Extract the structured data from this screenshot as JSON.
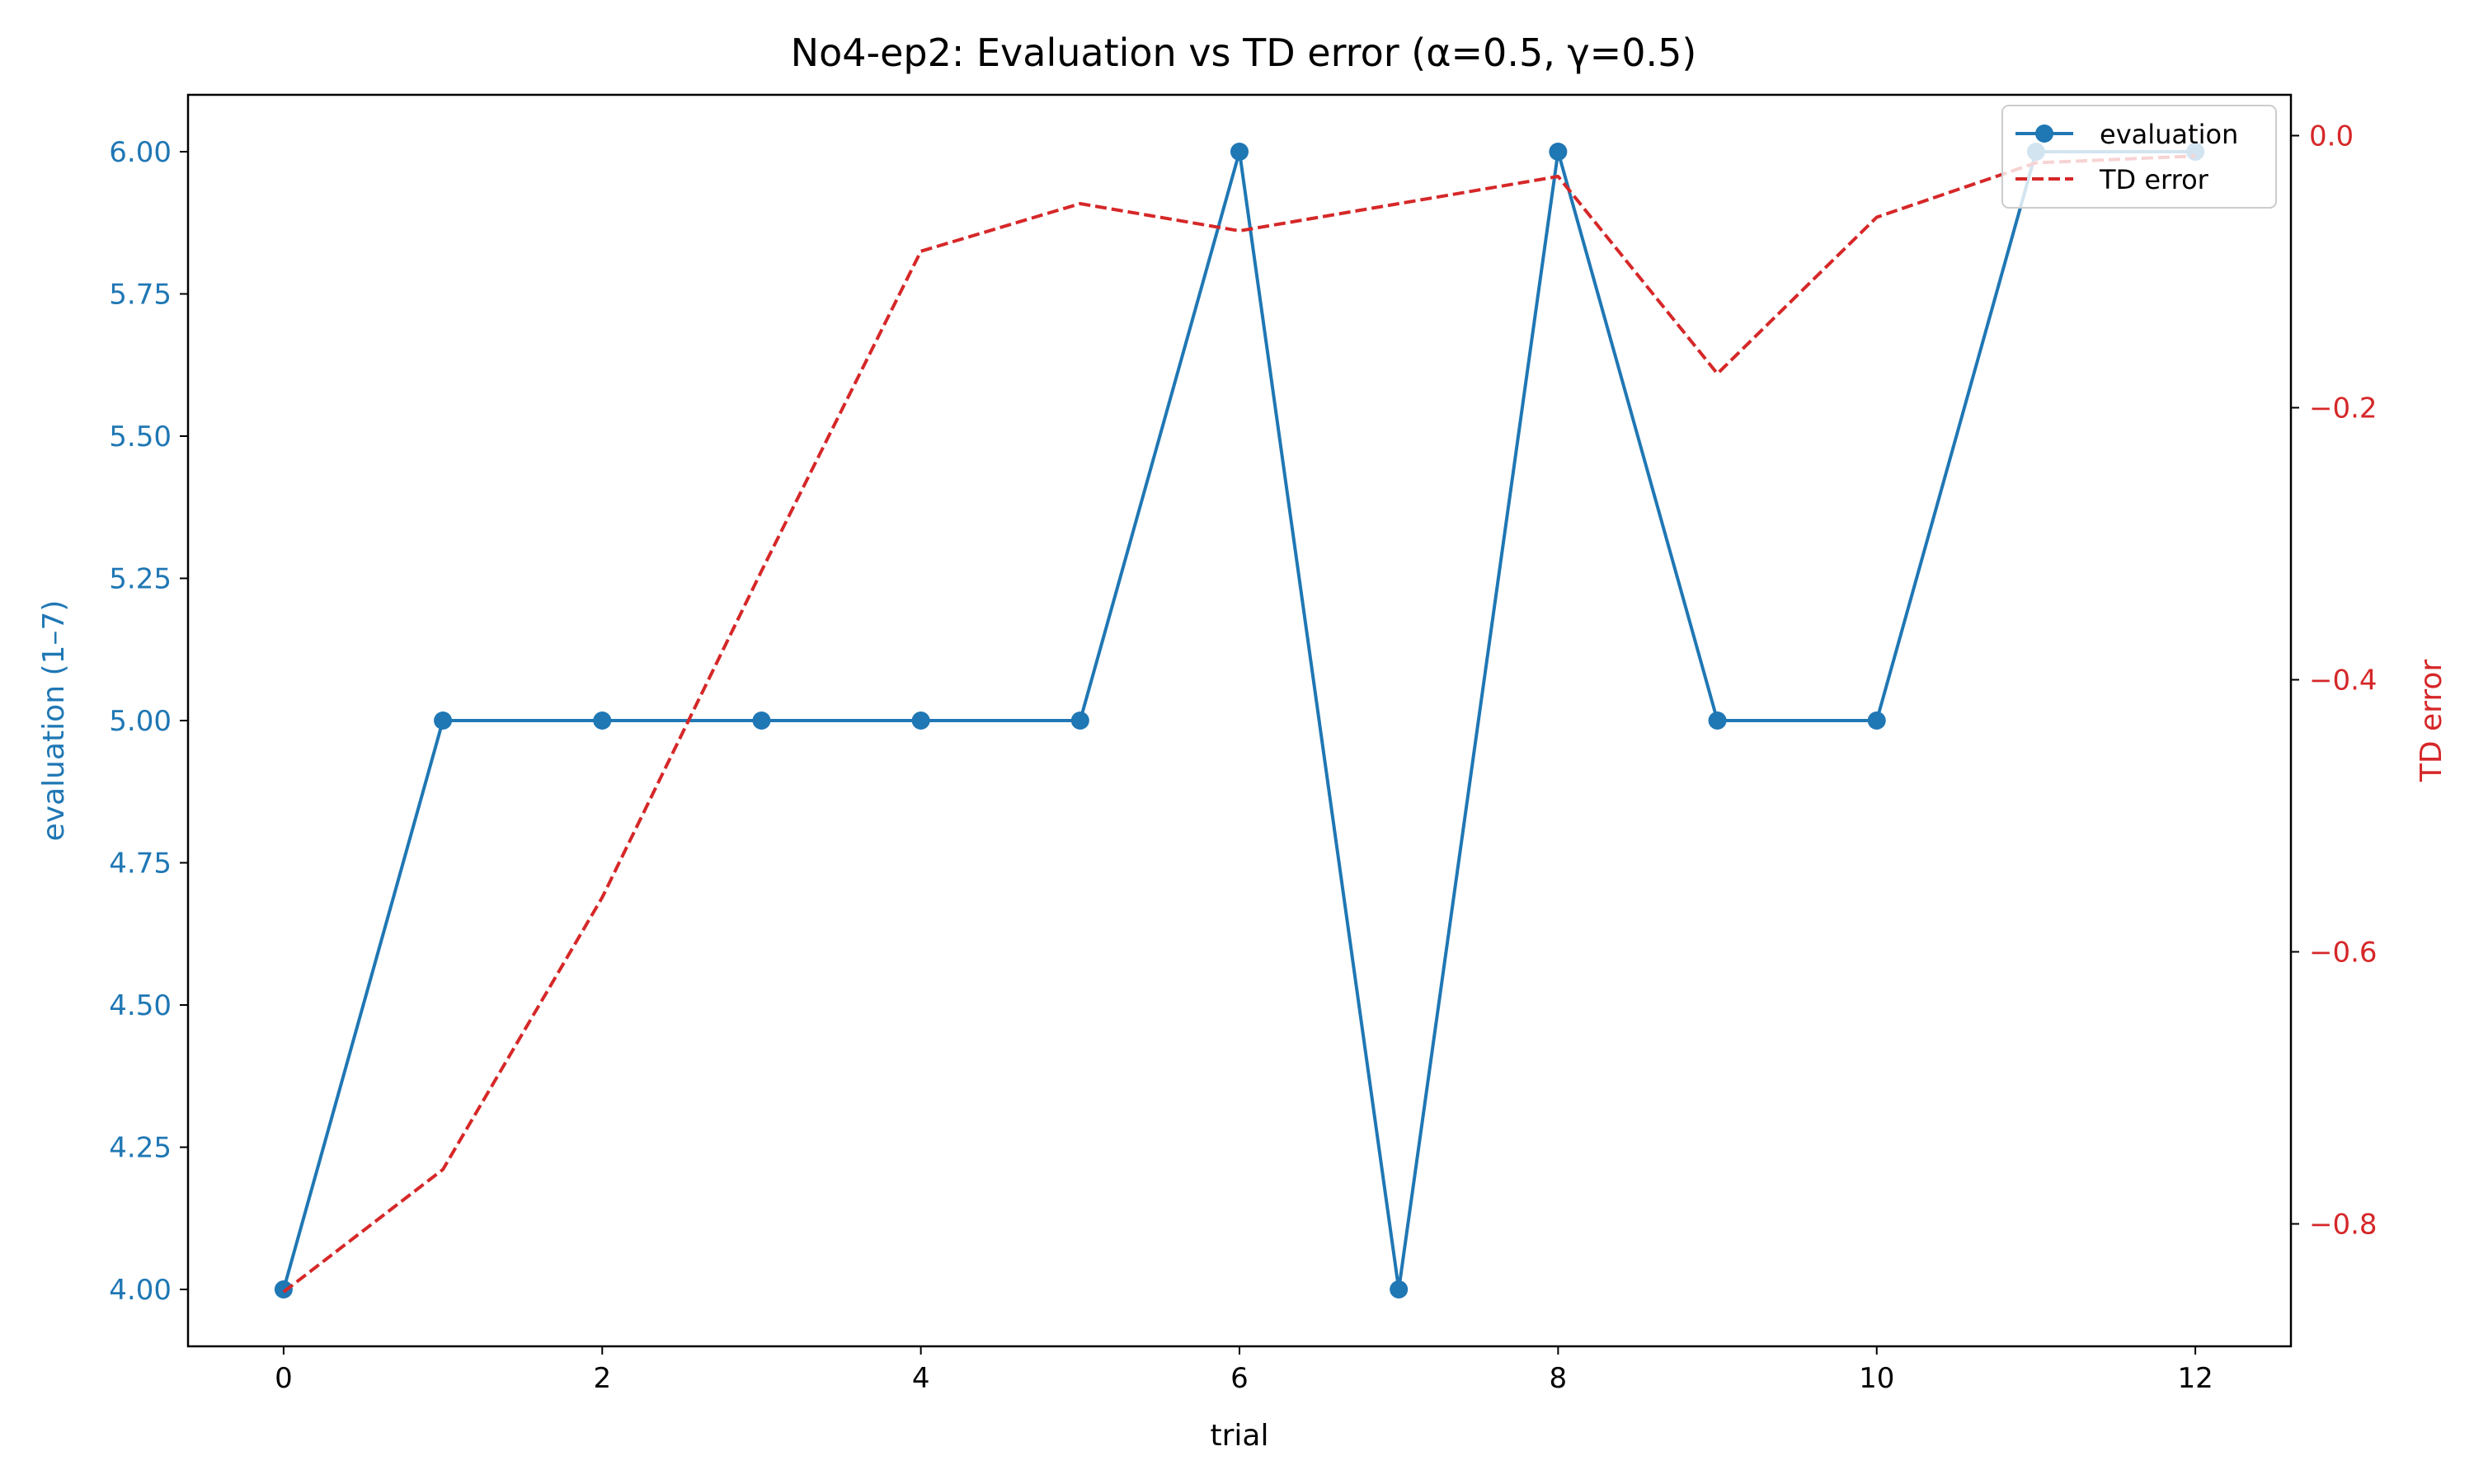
{
  "chart_data": {
    "type": "line",
    "title": "No4-ep2: Evaluation vs TD error (α=0.5, γ=0.5)",
    "xlabel": "trial",
    "ylabel": "evaluation (1–7)",
    "y2label": "TD error",
    "xlim": [
      -0.6,
      12.6
    ],
    "ylim": [
      3.9,
      6.1
    ],
    "y2lim": [
      -0.89,
      0.03
    ],
    "xticks": [
      0,
      2,
      4,
      6,
      8,
      10,
      12
    ],
    "xtick_labels": [
      "0",
      "2",
      "4",
      "6",
      "8",
      "10",
      "12"
    ],
    "yticks": [
      4.0,
      4.25,
      4.5,
      4.75,
      5.0,
      5.25,
      5.5,
      5.75,
      6.0
    ],
    "ytick_labels": [
      "4.00",
      "4.25",
      "4.50",
      "4.75",
      "5.00",
      "5.25",
      "5.50",
      "5.75",
      "6.00"
    ],
    "y2ticks": [
      0.0,
      -0.2,
      -0.4,
      -0.6,
      -0.8
    ],
    "y2tick_labels": [
      "0.0",
      "−0.2",
      "−0.4",
      "−0.6",
      "−0.8"
    ],
    "x": [
      0,
      1,
      2,
      3,
      4,
      5,
      6,
      7,
      8,
      9,
      10,
      11,
      12
    ],
    "series": [
      {
        "name": "evaluation",
        "axis": "left",
        "style": "solid-with-markers",
        "color": "#1f77b4",
        "values": [
          4,
          5,
          5,
          5,
          5,
          5,
          6,
          4,
          6,
          5,
          5,
          6,
          6
        ]
      },
      {
        "name": "TD error",
        "axis": "right",
        "style": "dashed",
        "color": "#d62728",
        "values": [
          -0.85,
          -0.76,
          -0.56,
          -0.32,
          -0.085,
          -0.05,
          -0.07,
          -0.05,
          -0.03,
          -0.175,
          -0.06,
          -0.02,
          -0.015
        ]
      }
    ],
    "legend_position": "top-right",
    "grid": false
  }
}
